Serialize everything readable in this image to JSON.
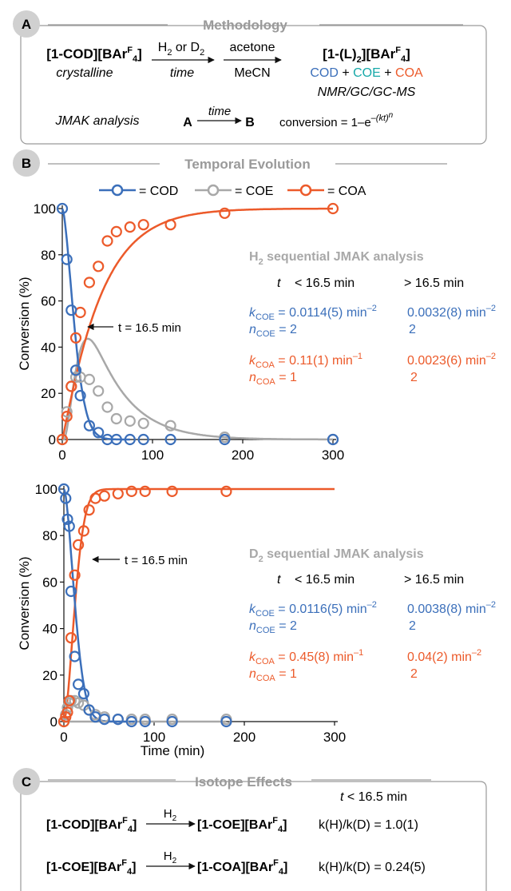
{
  "colors": {
    "cod": "#3b6fba",
    "coe": "#a8a8a8",
    "coa": "#ec5a2a",
    "panel_gray": "#9a9a9a",
    "badge": "#d0d0d0",
    "coe_teal": "#16a8a8"
  },
  "panelA": {
    "badge": "A",
    "title": "Methodology",
    "reactant": "[1-COD][BAr",
    "reactant_sup": "F",
    "reactant_sub": "4",
    "reactant_end": "]",
    "crystalline": "crystalline",
    "gas_a": "H",
    "gas_a_sub": "2",
    "gas_or": " or D",
    "gas_b_sub": "2",
    "time": "time",
    "acetone": "acetone",
    "mecn": "MeCN",
    "product": "[1-(L)",
    "product_sub": "2",
    "product_mid": "][BAr",
    "product_sup": "F",
    "product_sub2": "4",
    "product_end": "]",
    "cod": "COD",
    "plus1": " + ",
    "coe": "COE",
    "plus2": " + ",
    "coa": "COA",
    "methods": "NMR/GC/GC-MS",
    "jmak": "JMAK analysis",
    "a": "A",
    "arrow_time": "time",
    "b": "B",
    "conversion": "conversion = 1–e",
    "conv_sup": "–(kt)",
    "conv_sup_n": "n"
  },
  "panelB": {
    "badge": "B",
    "title": "Temporal Evolution",
    "legend": [
      {
        "label": "= COD"
      },
      {
        "label": "= COE"
      },
      {
        "label": "= COA"
      }
    ]
  },
  "chart_data": [
    {
      "type": "scatter",
      "xlim": [
        0,
        300
      ],
      "ylim": [
        0,
        100
      ],
      "xticks": [
        0,
        100,
        200,
        300
      ],
      "yticks": [
        0,
        20,
        40,
        60,
        80,
        100
      ],
      "ylabel": "Conversion (%)",
      "xlabel": "",
      "annotation": "t = 16.5 min",
      "series": [
        {
          "name": "COD",
          "x": [
            0,
            5,
            10,
            15,
            20,
            30,
            40,
            50,
            60,
            75,
            90,
            120,
            180,
            300
          ],
          "y": [
            100,
            78,
            56,
            30,
            19,
            6,
            3,
            0,
            0,
            0,
            0,
            0,
            0,
            0
          ]
        },
        {
          "name": "COE",
          "x": [
            0,
            5,
            10,
            15,
            20,
            30,
            40,
            50,
            60,
            75,
            90,
            120,
            180,
            300
          ],
          "y": [
            0,
            12,
            23,
            27,
            27,
            26,
            21,
            14,
            9,
            8,
            7,
            6,
            1,
            0
          ]
        },
        {
          "name": "COA",
          "x": [
            0,
            5,
            10,
            15,
            20,
            30,
            40,
            50,
            60,
            75,
            90,
            120,
            180,
            300
          ],
          "y": [
            0,
            10,
            23,
            44,
            55,
            68,
            75,
            86,
            90,
            92,
            93,
            93,
            98,
            100
          ]
        }
      ],
      "info": {
        "title": "H",
        "title_sub": "2",
        "title_rest": " sequential JMAK analysis",
        "t": "t",
        "col1": "< 16.5 min",
        "col2": "> 16.5 min",
        "k_coe": "k",
        "k_coe_sub": "COE",
        "k_coe_v1": " = 0.0114(5) min",
        "k_coe_v1_sup": "–2",
        "k_coe_v2": "0.0032(8) min",
        "k_coe_v2_sup": "–2",
        "n_coe": "n",
        "n_coe_sub": "COE",
        "n_coe_v1": " = 2",
        "n_coe_v2": "2",
        "k_coa": "k",
        "k_coa_sub": "COA",
        "k_coa_v1": " = 0.11(1) min",
        "k_coa_v1_sup": "–1",
        "k_coa_v2": "0.0023(6) min",
        "k_coa_v2_sup": "–2",
        "n_coa": "n",
        "n_coa_sub": "COA",
        "n_coa_v1": " = 1",
        "n_coa_v2": "2"
      }
    },
    {
      "type": "scatter",
      "xlim": [
        0,
        300
      ],
      "ylim": [
        0,
        100
      ],
      "xticks": [
        0,
        100,
        200,
        300
      ],
      "yticks": [
        0,
        20,
        40,
        60,
        80,
        100
      ],
      "ylabel": "Conversion (%)",
      "xlabel": "Time (min)",
      "annotation": "t = 16.5 min",
      "series": [
        {
          "name": "COD",
          "x": [
            0,
            2,
            4,
            6,
            8,
            12,
            16,
            22,
            28,
            35,
            45,
            60,
            75,
            90,
            120,
            180
          ],
          "y": [
            100,
            96,
            87,
            84,
            56,
            28,
            16,
            12,
            5,
            2,
            1,
            1,
            0,
            0,
            0,
            0
          ]
        },
        {
          "name": "COE",
          "x": [
            0,
            2,
            4,
            6,
            8,
            12,
            16,
            22,
            28,
            35,
            45,
            60,
            75,
            90,
            120,
            180
          ],
          "y": [
            0,
            3,
            6,
            8,
            9,
            9,
            8,
            7,
            5,
            3,
            2,
            1,
            1,
            1,
            1,
            1
          ]
        },
        {
          "name": "COA",
          "x": [
            0,
            2,
            4,
            6,
            8,
            12,
            16,
            22,
            28,
            35,
            45,
            60,
            75,
            90,
            120,
            180
          ],
          "y": [
            0,
            2,
            4,
            9,
            36,
            63,
            76,
            82,
            91,
            96,
            97,
            98,
            99,
            99,
            99,
            99
          ]
        }
      ],
      "info": {
        "title": "D",
        "title_sub": "2",
        "title_rest": " sequential JMAK analysis",
        "t": "t",
        "col1": "< 16.5 min",
        "col2": "> 16.5 min",
        "k_coe": "k",
        "k_coe_sub": "COE",
        "k_coe_v1": " = 0.0116(5) min",
        "k_coe_v1_sup": "–2",
        "k_coe_v2": "0.0038(8) min",
        "k_coe_v2_sup": "–2",
        "n_coe": "n",
        "n_coe_sub": "COE",
        "n_coe_v1": " = 2",
        "n_coe_v2": "2",
        "k_coa": "k",
        "k_coa_sub": "COA",
        "k_coa_v1": " = 0.45(8) min",
        "k_coa_v1_sup": "–1",
        "k_coa_v2": "0.04(2) min",
        "k_coa_v2_sup": "–2",
        "n_coa": "n",
        "n_coa_sub": "COA",
        "n_coa_v1": " = 1",
        "n_coa_v2": "2"
      }
    }
  ],
  "panelC": {
    "badge": "C",
    "title": "Isotope Effects",
    "t_label": "t",
    "t_cond": " < 16.5 min",
    "r1_left": "[1-COD][BAr",
    "r1_left_sup": "F",
    "r1_left_sub": "4",
    "r1_left_end": "]",
    "r1_gas": "H",
    "r1_gas_sub": "2",
    "r1_right": "[1-COE][BAr",
    "r1_right_sup": "F",
    "r1_right_sub": "4",
    "r1_right_end": "]",
    "r1_kie": "k(H)/k(D) = 1.0(1)",
    "r2_left": "[1-COE][BAr",
    "r2_left_sup": "F",
    "r2_left_sub": "4",
    "r2_left_end": "]",
    "r2_gas": "H",
    "r2_gas_sub": "2",
    "r2_right": "[1-COA][BAr",
    "r2_right_sup": "F",
    "r2_right_sub": "4",
    "r2_right_end": "]",
    "r2_kie": "k(H)/k(D) = 0.24(5)"
  }
}
